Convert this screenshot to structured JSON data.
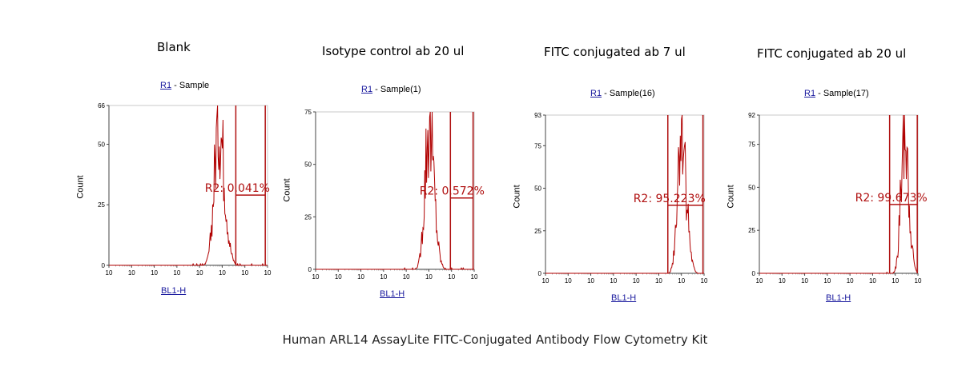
{
  "caption": "Human ARL14 AssayLite FITC-Conjugated Antibody Flow Cytometry Kit",
  "colors": {
    "data": "#b00000",
    "gate": "#b01010",
    "link": "#1a1a9e"
  },
  "chart_data": [
    {
      "type": "histogram",
      "title": "Blank",
      "gate_name": "R1",
      "sample_label": " - Sample",
      "xlabel": "BL1-H",
      "ylabel": "Count",
      "x_scale": "log",
      "xlim": [
        1,
        10000000
      ],
      "x_tick_labels": [
        "10",
        "10",
        "10",
        "10",
        "10",
        "10",
        "10",
        "10"
      ],
      "ylim": [
        0,
        66
      ],
      "y_ticks": [
        0,
        25,
        50,
        66
      ],
      "peak": {
        "center_log": 4.85,
        "sigma": 0.2,
        "height": 60
      },
      "gate": {
        "label": "R2: 0.041%",
        "x_start_log": 5.6,
        "x_end_log": 6.9,
        "y": 29
      }
    },
    {
      "type": "histogram",
      "title": "Isotype control ab 20 ul",
      "gate_name": "R1",
      "sample_label": " - Sample(1)",
      "xlabel": "BL1-H",
      "ylabel": "Count",
      "x_scale": "log",
      "xlim": [
        1,
        10000000
      ],
      "x_tick_labels": [
        "10",
        "10",
        "10",
        "10",
        "10",
        "10",
        "10",
        "10"
      ],
      "ylim": [
        0,
        75
      ],
      "y_ticks": [
        0,
        25,
        50,
        75
      ],
      "peak": {
        "center_log": 5.0,
        "sigma": 0.18,
        "height": 68
      },
      "gate": {
        "label": "R2: 0.572%",
        "x_start_log": 5.95,
        "x_end_log": 6.95,
        "y": 34
      }
    },
    {
      "type": "histogram",
      "title": "FITC conjugated ab 7 ul",
      "gate_name": "R1",
      "sample_label": " - Sample(16)",
      "xlabel": "BL1-H",
      "ylabel": "Count",
      "x_scale": "log",
      "xlim": [
        1,
        10000000
      ],
      "x_tick_labels": [
        "10",
        "10",
        "10",
        "10",
        "10",
        "10",
        "10",
        "10"
      ],
      "ylim": [
        0,
        93
      ],
      "y_ticks": [
        0,
        25,
        50,
        75,
        93
      ],
      "peak": {
        "center_log": 6.0,
        "sigma": 0.17,
        "height": 88
      },
      "gate": {
        "label": "R2: 95.223%",
        "x_start_log": 5.4,
        "x_end_log": 6.95,
        "y": 40
      }
    },
    {
      "type": "histogram",
      "title": "FITC conjugated ab 20 ul",
      "gate_name": "R1",
      "sample_label": " - Sample(17)",
      "xlabel": "BL1-H",
      "ylabel": "Count",
      "x_scale": "log",
      "xlim": [
        1,
        10000000
      ],
      "x_tick_labels": [
        "10",
        "10",
        "10",
        "10",
        "10",
        "10",
        "10",
        "10"
      ],
      "ylim": [
        0,
        92
      ],
      "y_ticks": [
        0,
        25,
        50,
        75,
        92
      ],
      "peak": {
        "center_log": 6.4,
        "sigma": 0.15,
        "height": 86
      },
      "gate": {
        "label": "R2: 99.673%",
        "x_start_log": 5.75,
        "x_end_log": 6.97,
        "y": 40
      }
    }
  ]
}
